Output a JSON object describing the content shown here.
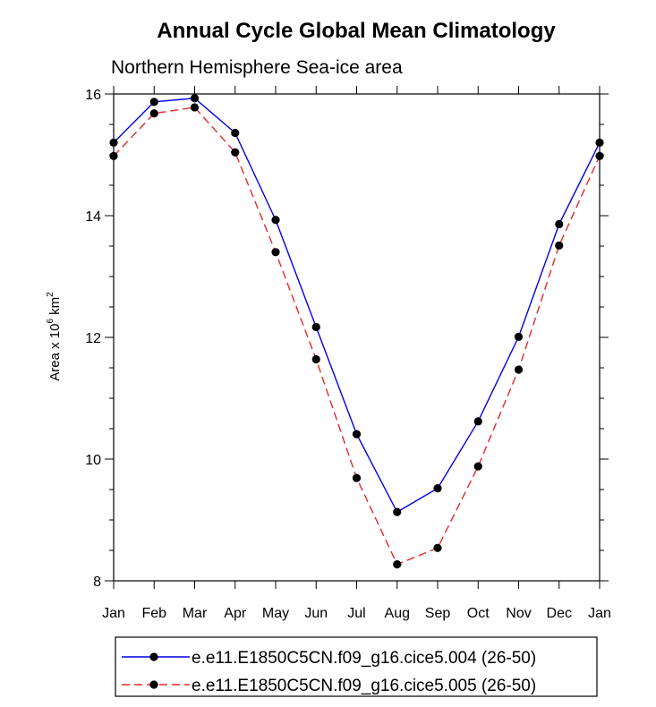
{
  "chart_data": {
    "type": "line",
    "title": "Annual Cycle Global Mean Climatology",
    "subtitle": "Northern Hemisphere Sea-ice area",
    "ylabel": "Area x 10",
    "ylabel_exp1": "6",
    "ylabel_unit": " km",
    "ylabel_exp2": "2",
    "xlabel": "",
    "categories": [
      "Jan",
      "Feb",
      "Mar",
      "Apr",
      "May",
      "Jun",
      "Jul",
      "Aug",
      "Sep",
      "Oct",
      "Nov",
      "Dec",
      "Jan"
    ],
    "ylim": [
      8,
      16
    ],
    "yticks": [
      8,
      10,
      12,
      14,
      16
    ],
    "series": [
      {
        "name": "e.e11.E1850C5CN.f09_g16.cice5.004 (26-50)",
        "color": "#0000ee",
        "dash": "solid",
        "values": [
          15.2,
          15.87,
          15.93,
          15.36,
          13.93,
          12.17,
          10.41,
          9.13,
          9.52,
          10.62,
          12.01,
          13.86,
          15.2
        ]
      },
      {
        "name": "e.e11.E1850C5CN.f09_g16.cice5.005 (26-50)",
        "color": "#e8282a",
        "dash": "dashed",
        "values": [
          14.98,
          15.68,
          15.78,
          15.04,
          13.4,
          11.64,
          9.69,
          8.27,
          8.54,
          9.88,
          11.47,
          13.51,
          14.98
        ]
      }
    ],
    "legend_position": "bottom-center",
    "grid": false
  }
}
